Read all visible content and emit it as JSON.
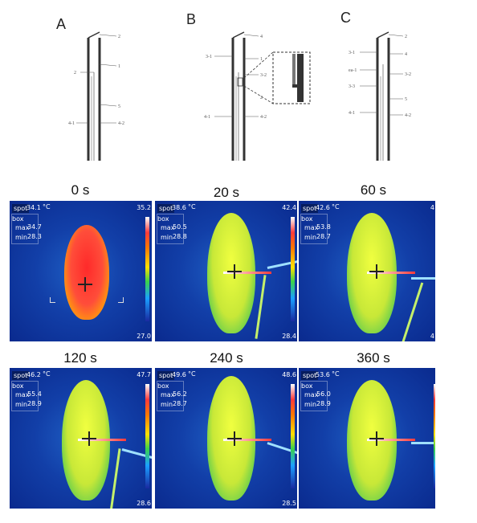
{
  "panels": {
    "A": {
      "letter": "A",
      "labels": [
        "2",
        "2",
        "1",
        "5",
        "4-1",
        "4-2"
      ]
    },
    "B": {
      "letter": "B",
      "labels": [
        "4",
        "3-1",
        "1",
        "3-2",
        "2",
        "4-1",
        "4-2"
      ]
    },
    "C": {
      "letter": "C",
      "labels": [
        "2",
        "3-1",
        "ea-1",
        "3-2",
        "3-3",
        "4",
        "5",
        "4-1",
        "4-2"
      ]
    }
  },
  "thermal_images": [
    {
      "time": "0 s",
      "spot": "34.1",
      "unit": "°C",
      "box": "box",
      "max_label": "max",
      "max": "34.7",
      "min_label": "min",
      "min": "28.3",
      "scale_top": "35.2",
      "scale_bottom": "27.0"
    },
    {
      "time": "20 s",
      "spot": "38.6",
      "unit": "°C",
      "box": "box",
      "max_label": "max",
      "max": "50.5",
      "min_label": "min",
      "min": "28.8",
      "scale_top": "42.4",
      "scale_bottom": "28.4"
    },
    {
      "time": "60 s",
      "spot": "42.6",
      "unit": "°C",
      "box": "box",
      "max_label": "max",
      "max": "53.8",
      "min_label": "min",
      "min": "28.7",
      "scale_top": "4",
      "scale_bottom": "4"
    },
    {
      "time": "120 s",
      "spot": "46.2",
      "unit": "°C",
      "box": "box",
      "max_label": "max",
      "max": "55.4",
      "min_label": "min",
      "min": "28.9",
      "scale_top": "47.7",
      "scale_bottom": "28.6"
    },
    {
      "time": "240 s",
      "spot": "49.6",
      "unit": "°C",
      "box": "box",
      "max_label": "max",
      "max": "56.2",
      "min_label": "min",
      "min": "28.7",
      "scale_top": "48.6",
      "scale_bottom": "28.5"
    },
    {
      "time": "360 s",
      "spot": "53.6",
      "unit": "°C",
      "box": "box",
      "max_label": "max",
      "max": "56.0",
      "min_label": "min",
      "min": "28.9",
      "scale_top": "",
      "scale_bottom": ""
    }
  ],
  "spot_label": "spot",
  "colors": {
    "background_cold": "#0a2a8e",
    "hot": "#ff3a3a",
    "warm": "#ffe000",
    "mid": "#3bd24a"
  }
}
